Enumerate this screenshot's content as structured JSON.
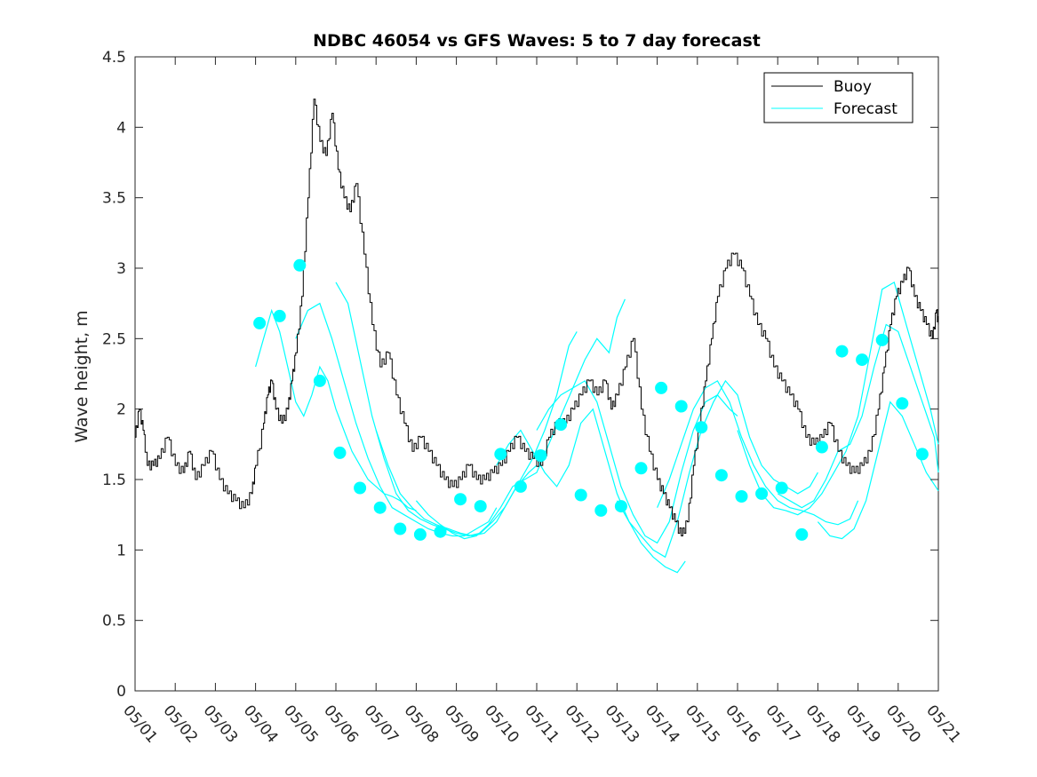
{
  "chart_data": {
    "type": "line",
    "title": "NDBC 46054 vs GFS Waves: 5 to 7 day forecast",
    "xlabel": "",
    "ylabel": "Wave height, m",
    "xlim": [
      0,
      20
    ],
    "ylim": [
      0,
      4.5
    ],
    "yticks": [
      0,
      0.5,
      1,
      1.5,
      2,
      2.5,
      3,
      3.5,
      4,
      4.5
    ],
    "x_tick_labels": [
      "05/01",
      "05/02",
      "05/03",
      "05/04",
      "05/05",
      "05/06",
      "05/07",
      "05/08",
      "05/09",
      "05/10",
      "05/11",
      "05/12",
      "05/13",
      "05/14",
      "05/15",
      "05/16",
      "05/17",
      "05/18",
      "05/19",
      "05/20",
      "05/21"
    ],
    "legend": {
      "placement": "top-right",
      "entries": [
        "Buoy",
        "Forecast"
      ]
    },
    "colors": {
      "buoy": "#000000",
      "forecast": "#00ffff",
      "axes": "#262626"
    },
    "grid": false,
    "buoy": {
      "name": "Buoy",
      "x": [
        0,
        0.1,
        0.2,
        0.3,
        0.45,
        0.6,
        0.8,
        1.0,
        1.2,
        1.35,
        1.5,
        1.7,
        1.9,
        2.1,
        2.3,
        2.5,
        2.7,
        2.9,
        3.0,
        3.2,
        3.3,
        3.4,
        3.5,
        3.65,
        3.8,
        3.9,
        4.0,
        4.15,
        4.3,
        4.45,
        4.6,
        4.75,
        4.9,
        5.05,
        5.2,
        5.35,
        5.5,
        5.7,
        5.9,
        6.1,
        6.3,
        6.5,
        6.7,
        6.9,
        7.1,
        7.3,
        7.5,
        7.7,
        7.9,
        8.1,
        8.3,
        8.5,
        8.7,
        8.9,
        9.1,
        9.3,
        9.5,
        9.7,
        9.9,
        10.1,
        10.3,
        10.5,
        10.7,
        10.9,
        11.1,
        11.3,
        11.5,
        11.7,
        11.85,
        12.0,
        12.2,
        12.4,
        12.6,
        12.8,
        13.0,
        13.15,
        13.3,
        13.45,
        13.6,
        13.75,
        13.9,
        14.05,
        14.2,
        14.35,
        14.5,
        14.7,
        14.9,
        15.1,
        15.3,
        15.5,
        15.7,
        15.9,
        16.1,
        16.3,
        16.5,
        16.7,
        16.9,
        17.1,
        17.3,
        17.5,
        17.7,
        17.9,
        18.1,
        18.3,
        18.5,
        18.65,
        18.8,
        18.95,
        19.1,
        19.25,
        19.4,
        19.55,
        19.7,
        19.85,
        19.95,
        20.0
      ],
      "values": [
        1.8,
        2.0,
        1.85,
        1.6,
        1.6,
        1.65,
        1.8,
        1.6,
        1.55,
        1.7,
        1.5,
        1.6,
        1.7,
        1.5,
        1.4,
        1.35,
        1.3,
        1.4,
        1.6,
        1.9,
        2.1,
        2.2,
        2.0,
        1.9,
        2.0,
        2.2,
        2.4,
        2.8,
        3.5,
        4.2,
        3.9,
        3.8,
        4.1,
        3.7,
        3.5,
        3.4,
        3.6,
        3.1,
        2.6,
        2.3,
        2.4,
        2.1,
        1.9,
        1.7,
        1.8,
        1.7,
        1.6,
        1.5,
        1.45,
        1.5,
        1.6,
        1.5,
        1.5,
        1.55,
        1.6,
        1.7,
        1.8,
        1.7,
        1.65,
        1.6,
        1.8,
        1.9,
        1.9,
        2.0,
        2.1,
        2.2,
        2.1,
        2.2,
        2.0,
        2.1,
        2.3,
        2.5,
        2.0,
        1.7,
        1.5,
        1.4,
        1.3,
        1.2,
        1.1,
        1.2,
        1.6,
        1.9,
        2.2,
        2.5,
        2.8,
        3.0,
        3.1,
        3.0,
        2.8,
        2.6,
        2.5,
        2.3,
        2.2,
        2.1,
        2.0,
        1.8,
        1.75,
        1.8,
        1.9,
        1.7,
        1.6,
        1.55,
        1.6,
        1.7,
        2.0,
        2.3,
        2.6,
        2.8,
        2.9,
        3.0,
        2.8,
        2.7,
        2.6,
        2.5,
        2.7,
        2.6
      ]
    },
    "forecast_runs": [
      {
        "x": [
          3.0,
          3.2,
          3.4,
          3.6,
          3.8,
          4.0,
          4.2,
          4.4,
          4.6,
          4.8,
          5.0,
          5.2,
          5.4,
          5.6,
          5.8,
          6.0,
          6.2,
          6.4,
          6.6,
          6.8,
          7.0
        ],
        "values": [
          2.3,
          2.5,
          2.7,
          2.55,
          2.3,
          2.05,
          1.95,
          2.1,
          2.3,
          2.2,
          2.0,
          1.85,
          1.7,
          1.6,
          1.5,
          1.45,
          1.4,
          1.38,
          1.35,
          1.3,
          1.28
        ]
      },
      {
        "x": [
          4.0,
          4.3,
          4.6,
          4.9,
          5.2,
          5.5,
          5.8,
          6.1,
          6.4,
          6.7,
          7.0,
          7.3,
          7.6,
          7.9,
          8.2,
          8.5,
          8.8,
          9.0
        ],
        "values": [
          2.5,
          2.7,
          2.75,
          2.5,
          2.2,
          1.9,
          1.65,
          1.45,
          1.3,
          1.25,
          1.2,
          1.15,
          1.12,
          1.1,
          1.1,
          1.15,
          1.2,
          1.3
        ]
      },
      {
        "x": [
          5.0,
          5.3,
          5.6,
          5.9,
          6.2,
          6.5,
          6.8,
          7.1,
          7.4,
          7.7,
          8.0,
          8.3,
          8.6,
          8.9,
          9.2,
          9.5,
          9.8,
          10.0
        ],
        "values": [
          2.9,
          2.75,
          2.35,
          1.95,
          1.65,
          1.4,
          1.28,
          1.22,
          1.18,
          1.15,
          1.12,
          1.1,
          1.12,
          1.2,
          1.3,
          1.45,
          1.55,
          1.6
        ]
      },
      {
        "x": [
          6.0,
          6.3,
          6.6,
          6.9,
          7.2,
          7.5,
          7.8,
          8.1,
          8.4,
          8.7,
          9.0,
          9.3,
          9.6,
          9.9,
          10.2,
          10.5,
          10.8,
          11.0
        ],
        "values": [
          1.85,
          1.6,
          1.4,
          1.3,
          1.22,
          1.18,
          1.15,
          1.12,
          1.1,
          1.12,
          1.2,
          1.35,
          1.5,
          1.65,
          1.85,
          2.1,
          2.45,
          2.55
        ]
      },
      {
        "x": [
          7.0,
          7.3,
          7.6,
          7.9,
          8.2,
          8.5,
          8.8,
          9.1,
          9.4,
          9.7,
          10.0,
          10.3,
          10.6,
          10.9,
          11.2,
          11.5,
          11.8,
          12.0,
          12.2
        ],
        "values": [
          1.35,
          1.25,
          1.18,
          1.12,
          1.08,
          1.1,
          1.18,
          1.3,
          1.45,
          1.5,
          1.55,
          1.75,
          1.95,
          2.15,
          2.35,
          2.5,
          2.4,
          2.65,
          2.78
        ]
      },
      {
        "x": [
          9.0,
          9.3,
          9.6,
          9.9,
          10.2,
          10.5,
          10.8,
          11.1,
          11.4,
          11.7,
          12.0,
          12.3,
          12.6,
          12.9,
          13.2,
          13.5,
          13.7
        ],
        "values": [
          1.6,
          1.75,
          1.85,
          1.7,
          1.55,
          1.45,
          1.6,
          1.9,
          2.0,
          1.7,
          1.4,
          1.2,
          1.05,
          0.95,
          0.88,
          0.84,
          0.92
        ]
      },
      {
        "x": [
          10.0,
          10.3,
          10.6,
          10.9,
          11.2,
          11.5,
          11.8,
          12.1,
          12.4,
          12.7,
          13.0,
          13.3,
          13.6,
          13.9,
          14.2,
          14.5,
          14.8,
          15.0
        ],
        "values": [
          1.85,
          2.0,
          2.1,
          2.15,
          2.2,
          2.05,
          1.75,
          1.45,
          1.25,
          1.1,
          1.05,
          1.2,
          1.55,
          1.85,
          2.05,
          2.1,
          2.0,
          1.95
        ]
      },
      {
        "x": [
          12.0,
          12.3,
          12.6,
          12.9,
          13.2,
          13.5,
          13.8,
          14.1,
          14.4,
          14.7,
          15.0,
          15.3,
          15.6,
          15.9,
          16.2,
          16.5,
          16.8,
          17.0
        ],
        "values": [
          1.35,
          1.2,
          1.1,
          1.0,
          0.95,
          1.2,
          1.55,
          1.85,
          2.05,
          2.2,
          2.1,
          1.8,
          1.6,
          1.5,
          1.45,
          1.4,
          1.45,
          1.55
        ]
      },
      {
        "x": [
          13.0,
          13.3,
          13.6,
          13.9,
          14.2,
          14.5,
          14.8,
          15.1,
          15.4,
          15.7,
          16.0,
          16.3,
          16.6,
          16.9,
          17.2,
          17.5,
          17.8,
          18.0
        ],
        "values": [
          1.3,
          1.5,
          1.75,
          2.0,
          2.15,
          2.2,
          2.05,
          1.8,
          1.6,
          1.45,
          1.35,
          1.3,
          1.28,
          1.25,
          1.2,
          1.18,
          1.22,
          1.35
        ]
      },
      {
        "x": [
          15.0,
          15.3,
          15.6,
          15.9,
          16.2,
          16.5,
          16.8,
          17.1,
          17.4,
          17.7,
          18.0,
          18.3,
          18.6,
          18.9,
          19.2,
          19.5,
          19.8,
          20.0
        ],
        "values": [
          1.85,
          1.6,
          1.4,
          1.3,
          1.28,
          1.25,
          1.3,
          1.4,
          1.55,
          1.7,
          1.95,
          2.4,
          2.85,
          2.9,
          2.6,
          2.3,
          2.0,
          1.75
        ]
      },
      {
        "x": [
          16.0,
          16.3,
          16.6,
          16.9,
          17.2,
          17.5,
          17.8,
          18.1,
          18.4,
          18.7,
          19.0,
          19.3,
          19.6,
          19.9,
          20.0
        ],
        "values": [
          1.4,
          1.35,
          1.3,
          1.35,
          1.5,
          1.7,
          1.75,
          1.95,
          2.3,
          2.6,
          2.55,
          2.3,
          2.05,
          1.8,
          1.55
        ]
      },
      {
        "x": [
          17.0,
          17.3,
          17.6,
          17.9,
          18.2,
          18.5,
          18.8,
          19.1,
          19.4,
          19.7,
          20.0
        ],
        "values": [
          1.2,
          1.1,
          1.08,
          1.15,
          1.35,
          1.7,
          2.05,
          1.95,
          1.75,
          1.55,
          1.42
        ]
      }
    ],
    "forecast_markers": {
      "x": [
        3.1,
        3.6,
        4.1,
        4.6,
        5.1,
        5.6,
        6.1,
        6.6,
        7.1,
        7.6,
        8.1,
        8.6,
        9.1,
        9.6,
        10.1,
        10.6,
        11.1,
        11.6,
        12.1,
        12.6,
        13.1,
        13.6,
        14.1,
        14.6,
        15.1,
        15.6,
        16.1,
        16.6,
        17.1,
        17.6,
        18.1,
        18.6,
        19.1,
        19.6
      ],
      "values": [
        2.61,
        2.66,
        3.02,
        2.2,
        1.69,
        1.44,
        1.3,
        1.15,
        1.11,
        1.13,
        1.36,
        1.31,
        1.68,
        1.45,
        1.67,
        1.89,
        1.39,
        1.28,
        1.31,
        1.58,
        2.15,
        2.02,
        1.87,
        1.53,
        1.38,
        1.4,
        1.44,
        1.11,
        1.73,
        2.41,
        2.35,
        2.49,
        2.04,
        1.68
      ]
    }
  }
}
